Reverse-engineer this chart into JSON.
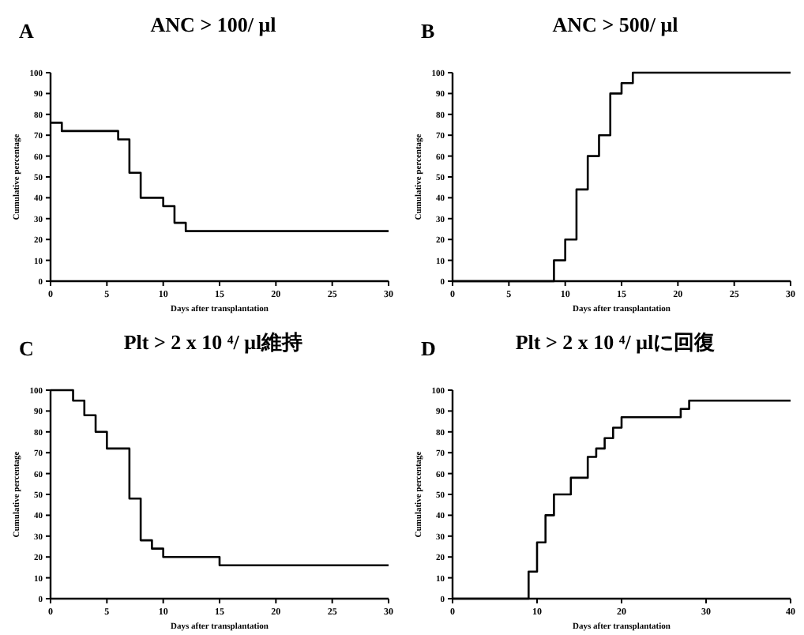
{
  "chart_data": [
    {
      "type": "step",
      "title": "ANC > 100/ μl",
      "annotations": [
        "A"
      ],
      "xlabel": "Days after transplantation",
      "ylabel": "Cumulative percentage",
      "xlim": [
        0,
        30
      ],
      "xticks": [
        0,
        5,
        10,
        15,
        20,
        25,
        30
      ],
      "ylim": [
        0,
        100
      ],
      "yticks": [
        0,
        10,
        20,
        30,
        40,
        50,
        60,
        70,
        80,
        90,
        100
      ],
      "series": [
        {
          "color": "#000000",
          "x": [
            0,
            1,
            6,
            7,
            8,
            10,
            11,
            12,
            30
          ],
          "values": [
            76,
            72,
            68,
            52,
            40,
            36,
            28,
            24,
            24
          ]
        }
      ]
    },
    {
      "type": "step",
      "title": "ANC > 500/ μl",
      "annotations": [
        "B"
      ],
      "xlabel": "Days after transplantation",
      "ylabel": "Cumulative percentage",
      "xlim": [
        0,
        30
      ],
      "xticks": [
        0,
        5,
        10,
        15,
        20,
        25,
        30
      ],
      "ylim": [
        0,
        100
      ],
      "yticks": [
        0,
        10,
        20,
        30,
        40,
        50,
        60,
        70,
        80,
        90,
        100
      ],
      "series": [
        {
          "color": "#000000",
          "x": [
            0,
            9,
            10,
            11,
            12,
            13,
            14,
            15,
            16,
            30
          ],
          "values": [
            0,
            10,
            20,
            44,
            60,
            70,
            90,
            95,
            100,
            100
          ]
        }
      ]
    },
    {
      "type": "step",
      "title": "Plt > 2 x 10 ⁴/ μl維持",
      "annotations": [
        "C"
      ],
      "xlabel": "Days after transplantation",
      "ylabel": "Cumulative percentage",
      "xlim": [
        0,
        30
      ],
      "xticks": [
        0,
        5,
        10,
        15,
        20,
        25,
        30
      ],
      "ylim": [
        0,
        100
      ],
      "yticks": [
        0,
        10,
        20,
        30,
        40,
        50,
        60,
        70,
        80,
        90,
        100
      ],
      "series": [
        {
          "color": "#000000",
          "x": [
            0,
            2,
            3,
            4,
            5,
            7,
            8,
            9,
            10,
            15,
            30
          ],
          "values": [
            100,
            95,
            88,
            80,
            72,
            48,
            28,
            24,
            20,
            16,
            16
          ]
        }
      ]
    },
    {
      "type": "step",
      "title": "Plt > 2 x 10 ⁴/ μlに回復",
      "annotations": [
        "D"
      ],
      "xlabel": "Days after transplantation",
      "ylabel": "Cumulative percentage",
      "xlim": [
        0,
        40
      ],
      "xticks": [
        0,
        10,
        20,
        30,
        40
      ],
      "ylim": [
        0,
        100
      ],
      "yticks": [
        0,
        10,
        20,
        30,
        40,
        50,
        60,
        70,
        80,
        90,
        100
      ],
      "series": [
        {
          "color": "#000000",
          "x": [
            0,
            9,
            10,
            11,
            12,
            14,
            16,
            17,
            18,
            19,
            20,
            27,
            28,
            40
          ],
          "values": [
            0,
            13,
            27,
            40,
            50,
            58,
            68,
            72,
            77,
            82,
            87,
            91,
            95,
            95
          ]
        }
      ]
    }
  ]
}
